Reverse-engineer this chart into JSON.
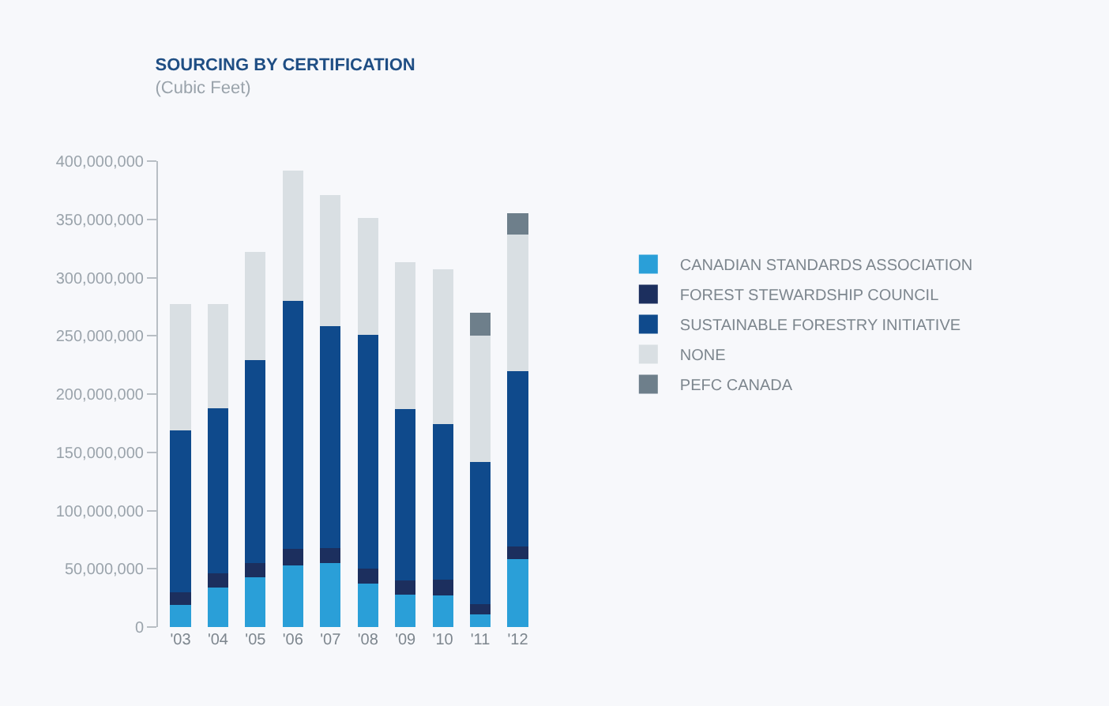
{
  "chart_data": {
    "type": "bar",
    "title": "SOURCING BY CERTIFICATION",
    "subtitle": "(Cubic Feet)",
    "categories": [
      "'03",
      "'04",
      "'05",
      "'06",
      "'07",
      "'08",
      "'09",
      "'10",
      "'11",
      "'12"
    ],
    "stacked": true,
    "series": [
      {
        "name": "CANADIAN STANDARDS ASSOCIATION",
        "color": "#2a9fd8",
        "values": [
          19000000,
          34000000,
          43000000,
          53000000,
          55000000,
          37000000,
          28000000,
          27000000,
          11000000,
          58000000
        ]
      },
      {
        "name": "FOREST STEWARDSHIP COUNCIL",
        "color": "#1c2f5e",
        "values": [
          11000000,
          12000000,
          12000000,
          14000000,
          13000000,
          13000000,
          12000000,
          14000000,
          9000000,
          11000000
        ]
      },
      {
        "name": "SUSTAINABLE FORESTRY INITIATIVE",
        "color": "#0f4a8c",
        "values": [
          139000000,
          142000000,
          174000000,
          213000000,
          190000000,
          201000000,
          147000000,
          133000000,
          122000000,
          151000000
        ]
      },
      {
        "name": "NONE",
        "color": "#d9dfe3",
        "values": [
          108000000,
          89000000,
          93000000,
          112000000,
          113000000,
          100000000,
          126000000,
          133000000,
          108000000,
          117000000
        ]
      },
      {
        "name": "PEFC CANADA",
        "color": "#6e7f8b",
        "values": [
          null,
          null,
          null,
          null,
          null,
          null,
          null,
          null,
          20000000,
          18000000
        ]
      }
    ],
    "ylim": [
      0,
      400000000
    ],
    "yticks": [
      0,
      {
        "value": 50000000,
        "label": "50,000,000"
      },
      {
        "value": 100000000,
        "label": "100,000,000"
      },
      {
        "value": 150000000,
        "label": "150,000,000"
      },
      {
        "value": 200000000,
        "label": "200,000,000"
      },
      {
        "value": 250000000,
        "label": "250,000,000"
      },
      {
        "value": 300000000,
        "label": "300,000,000"
      },
      {
        "value": 350000000,
        "label": "350,000,000"
      },
      {
        "value": 400000000,
        "label": "400,000,000"
      }
    ],
    "grid": false,
    "legend": "right"
  }
}
